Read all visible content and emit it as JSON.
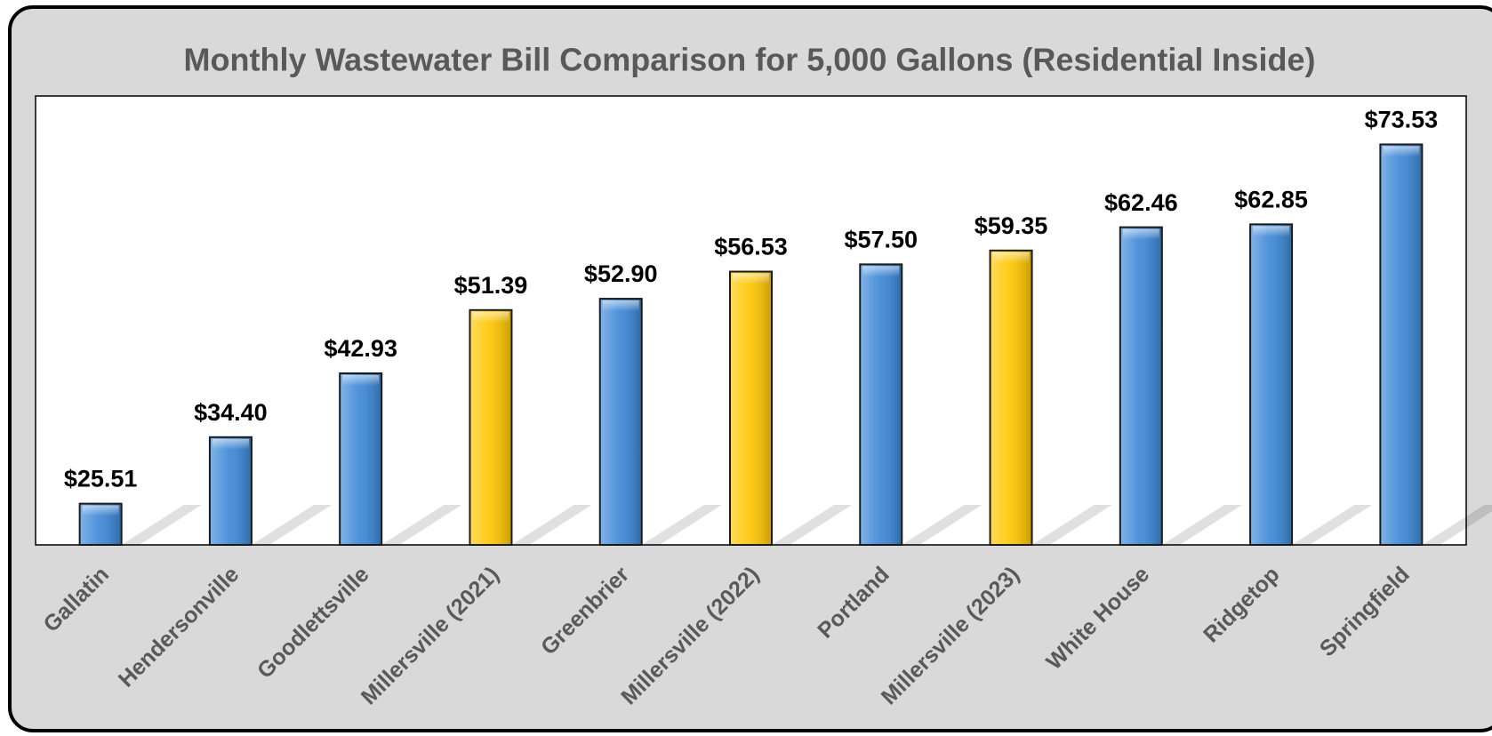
{
  "chart_data": {
    "type": "bar",
    "title": "Monthly Wastewater Bill Comparison for 5,000 Gallons (Residential Inside)",
    "categories": [
      "Gallatin",
      "Hendersonville",
      "Goodlettsville",
      "Millersville (2021)",
      "Greenbrier",
      "Millersville (2022)",
      "Portland",
      "Millersville (2023)",
      "White House",
      "Ridgetop",
      "Springfield"
    ],
    "values": [
      25.51,
      34.4,
      42.93,
      51.39,
      52.9,
      56.53,
      57.5,
      59.35,
      62.46,
      62.85,
      73.53
    ],
    "value_labels": [
      "$25.51",
      "$34.40",
      "$42.93",
      "$51.39",
      "$52.90",
      "$56.53",
      "$57.50",
      "$59.35",
      "$62.46",
      "$62.85",
      "$73.53"
    ],
    "colors": [
      "#3a87d6",
      "#3a87d6",
      "#3a87d6",
      "#ffc600",
      "#3a87d6",
      "#ffc600",
      "#3a87d6",
      "#ffc600",
      "#3a87d6",
      "#3a87d6",
      "#3a87d6"
    ],
    "ylim": [
      20,
      80
    ]
  }
}
